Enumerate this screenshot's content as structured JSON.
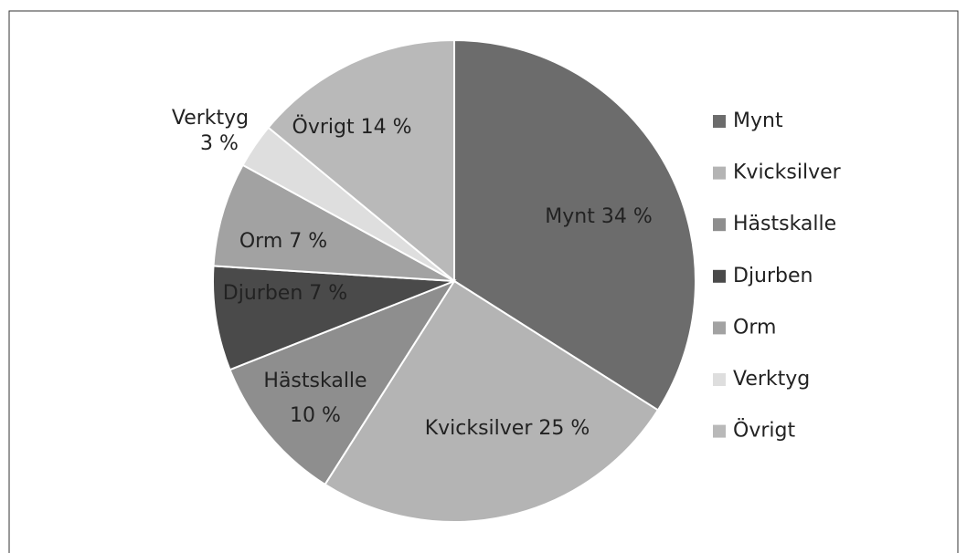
{
  "chart_data": {
    "type": "pie",
    "categories": [
      "Mynt",
      "Kvicksilver",
      "Hästskalle",
      "Djurben",
      "Orm",
      "Verktyg",
      "Övrigt"
    ],
    "values": [
      34,
      25,
      10,
      7,
      7,
      3,
      14
    ],
    "value_labels": [
      "34 %",
      "25 %",
      "10 %",
      "7 %",
      "7 %",
      "3 %",
      "14 %"
    ],
    "colors": [
      "#6c6c6c",
      "#b4b4b4",
      "#8e8e8e",
      "#4a4a4a",
      "#a2a2a2",
      "#dedede",
      "#b9b9b9"
    ],
    "legend": "right"
  }
}
